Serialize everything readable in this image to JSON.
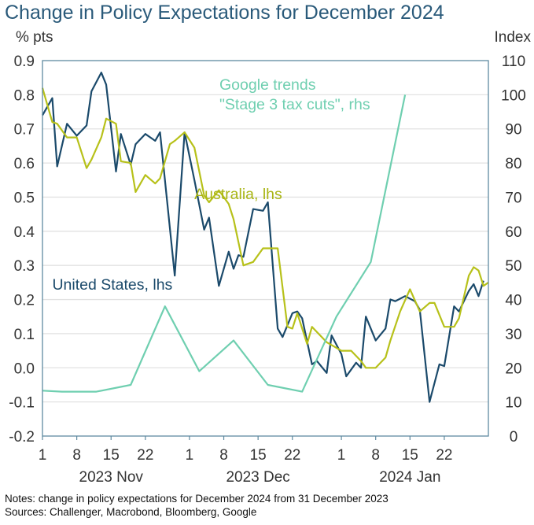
{
  "header": {
    "title": "Change in Policy Expectations for December 2024",
    "left_unit": "% pts",
    "right_unit": "Index"
  },
  "footer": {
    "notes": "Notes: change in policy expectations for December 2024 from 31 December 2023",
    "sources": "Sources: Challenger, Macrobond, Bloomberg, Google"
  },
  "chart_data": {
    "type": "line",
    "title": "Change in Policy Expectations for December 2024",
    "xlabel": "",
    "ylabel": "% pts",
    "ylabel_right": "Index",
    "ylim": [
      -0.2,
      0.9
    ],
    "ylim_right": [
      0,
      110
    ],
    "yticks": [
      "-0.2",
      "-0.1",
      "0.0",
      "0.1",
      "0.2",
      "0.3",
      "0.4",
      "0.5",
      "0.6",
      "0.7",
      "0.8",
      "0.9"
    ],
    "yticks_right": [
      "0",
      "10",
      "20",
      "30",
      "40",
      "50",
      "60",
      "70",
      "80",
      "90",
      "100",
      "110"
    ],
    "xlim": [
      "2023-11-01",
      "2024-01-31"
    ],
    "xticks": [
      {
        "date": "2023-11-01",
        "label": "1"
      },
      {
        "date": "2023-11-08",
        "label": "8"
      },
      {
        "date": "2023-11-15",
        "label": "15"
      },
      {
        "date": "2023-11-22",
        "label": "22"
      },
      {
        "date": "2023-12-01",
        "label": "1"
      },
      {
        "date": "2023-12-08",
        "label": "8"
      },
      {
        "date": "2023-12-15",
        "label": "15"
      },
      {
        "date": "2023-12-22",
        "label": "22"
      },
      {
        "date": "2024-01-01",
        "label": "1"
      },
      {
        "date": "2024-01-08",
        "label": "8"
      },
      {
        "date": "2024-01-15",
        "label": "15"
      },
      {
        "date": "2024-01-22",
        "label": "22"
      }
    ],
    "month_labels": [
      {
        "date": "2023-11-15",
        "label": "2023 Nov"
      },
      {
        "date": "2023-12-15",
        "label": "2023 Dec"
      },
      {
        "date": "2024-01-15",
        "label": "2024 Jan"
      }
    ],
    "grid": true,
    "series": [
      {
        "name": "United States, lhs",
        "axis": "left",
        "color": "#1b4a6b",
        "label_date": "2023-11-03",
        "label_value": 0.245,
        "points": [
          [
            "2023-11-01",
            0.74
          ],
          [
            "2023-11-03",
            0.79
          ],
          [
            "2023-11-04",
            0.59
          ],
          [
            "2023-11-06",
            0.715
          ],
          [
            "2023-11-08",
            0.68
          ],
          [
            "2023-11-10",
            0.71
          ],
          [
            "2023-11-11",
            0.81
          ],
          [
            "2023-11-13",
            0.865
          ],
          [
            "2023-11-14",
            0.83
          ],
          [
            "2023-11-16",
            0.575
          ],
          [
            "2023-11-17",
            0.685
          ],
          [
            "2023-11-19",
            0.595
          ],
          [
            "2023-11-20",
            0.655
          ],
          [
            "2023-11-22",
            0.685
          ],
          [
            "2023-11-24",
            0.665
          ],
          [
            "2023-11-25",
            0.69
          ],
          [
            "2023-11-28",
            0.27
          ],
          [
            "2023-11-30",
            0.69
          ],
          [
            "2023-12-02",
            0.55
          ],
          [
            "2023-12-04",
            0.405
          ],
          [
            "2023-12-05",
            0.44
          ],
          [
            "2023-12-07",
            0.24
          ],
          [
            "2023-12-09",
            0.34
          ],
          [
            "2023-12-10",
            0.29
          ],
          [
            "2023-12-11",
            0.33
          ],
          [
            "2023-12-12",
            0.325
          ],
          [
            "2023-12-14",
            0.465
          ],
          [
            "2023-12-16",
            0.46
          ],
          [
            "2023-12-17",
            0.485
          ],
          [
            "2023-12-19",
            0.115
          ],
          [
            "2023-12-20",
            0.09
          ],
          [
            "2023-12-22",
            0.16
          ],
          [
            "2023-12-23",
            0.165
          ],
          [
            "2023-12-24",
            0.145
          ],
          [
            "2023-12-26",
            0.01
          ],
          [
            "2023-12-27",
            0.02
          ],
          [
            "2023-12-29",
            -0.015
          ],
          [
            "2023-12-30",
            0.095
          ],
          [
            "2024-01-01",
            0.04
          ],
          [
            "2024-01-02",
            -0.025
          ],
          [
            "2024-01-04",
            0.015
          ],
          [
            "2024-01-05",
            0.0
          ],
          [
            "2024-01-06",
            0.15
          ],
          [
            "2024-01-08",
            0.08
          ],
          [
            "2024-01-10",
            0.115
          ],
          [
            "2024-01-11",
            0.2
          ],
          [
            "2024-01-12",
            0.195
          ],
          [
            "2024-01-14",
            0.21
          ],
          [
            "2024-01-16",
            0.195
          ],
          [
            "2024-01-17",
            0.17
          ],
          [
            "2024-01-19",
            -0.1
          ],
          [
            "2024-01-21",
            0.01
          ],
          [
            "2024-01-22",
            0.005
          ],
          [
            "2024-01-24",
            0.18
          ],
          [
            "2024-01-25",
            0.165
          ],
          [
            "2024-01-27",
            0.225
          ],
          [
            "2024-01-28",
            0.245
          ],
          [
            "2024-01-29",
            0.21
          ],
          [
            "2024-01-30",
            0.255
          ]
        ]
      },
      {
        "name": "Australia, lhs",
        "axis": "left",
        "color": "#b7c11a",
        "label_date": "2023-12-02",
        "label_value": 0.51,
        "points": [
          [
            "2023-11-01",
            0.82
          ],
          [
            "2023-11-03",
            0.72
          ],
          [
            "2023-11-04",
            0.715
          ],
          [
            "2023-11-06",
            0.675
          ],
          [
            "2023-11-08",
            0.675
          ],
          [
            "2023-11-10",
            0.585
          ],
          [
            "2023-11-11",
            0.61
          ],
          [
            "2023-11-13",
            0.675
          ],
          [
            "2023-11-14",
            0.73
          ],
          [
            "2023-11-16",
            0.715
          ],
          [
            "2023-11-17",
            0.605
          ],
          [
            "2023-11-19",
            0.6
          ],
          [
            "2023-11-20",
            0.515
          ],
          [
            "2023-11-22",
            0.565
          ],
          [
            "2023-11-24",
            0.54
          ],
          [
            "2023-11-25",
            0.555
          ],
          [
            "2023-11-27",
            0.655
          ],
          [
            "2023-11-28",
            0.665
          ],
          [
            "2023-11-30",
            0.69
          ],
          [
            "2023-12-02",
            0.645
          ],
          [
            "2023-12-04",
            0.505
          ],
          [
            "2023-12-05",
            0.485
          ],
          [
            "2023-12-07",
            0.52
          ],
          [
            "2023-12-09",
            0.48
          ],
          [
            "2023-12-10",
            0.435
          ],
          [
            "2023-12-12",
            0.3
          ],
          [
            "2023-12-14",
            0.31
          ],
          [
            "2023-12-16",
            0.35
          ],
          [
            "2023-12-18",
            0.35
          ],
          [
            "2023-12-19",
            0.35
          ],
          [
            "2023-12-21",
            0.12
          ],
          [
            "2023-12-22",
            0.115
          ],
          [
            "2023-12-23",
            0.16
          ],
          [
            "2023-12-25",
            0.07
          ],
          [
            "2023-12-26",
            0.12
          ],
          [
            "2023-12-27",
            0.105
          ],
          [
            "2023-12-29",
            0.075
          ],
          [
            "2024-01-01",
            0.05
          ],
          [
            "2024-01-03",
            0.05
          ],
          [
            "2024-01-05",
            0.02
          ],
          [
            "2024-01-06",
            0.0
          ],
          [
            "2024-01-08",
            0.0
          ],
          [
            "2024-01-10",
            0.03
          ],
          [
            "2024-01-11",
            0.08
          ],
          [
            "2024-01-13",
            0.165
          ],
          [
            "2024-01-15",
            0.23
          ],
          [
            "2024-01-17",
            0.165
          ],
          [
            "2024-01-19",
            0.19
          ],
          [
            "2024-01-20",
            0.19
          ],
          [
            "2024-01-22",
            0.12
          ],
          [
            "2024-01-24",
            0.12
          ],
          [
            "2024-01-25",
            0.145
          ],
          [
            "2024-01-27",
            0.27
          ],
          [
            "2024-01-28",
            0.295
          ],
          [
            "2024-01-29",
            0.285
          ],
          [
            "2024-01-30",
            0.24
          ],
          [
            "2024-01-31",
            0.25
          ]
        ]
      },
      {
        "name": "Google trends \"Stage 3 tax cuts\", rhs",
        "axis": "right",
        "color": "#6fcfb0",
        "label_lines": [
          "Google trends",
          "\"Stage 3 tax cuts\", rhs"
        ],
        "points": [
          [
            "2023-11-01",
            13.3
          ],
          [
            "2023-11-05",
            13.0
          ],
          [
            "2023-11-12",
            13.0
          ],
          [
            "2023-11-19",
            15.0
          ],
          [
            "2023-11-26",
            38.0
          ],
          [
            "2023-12-03",
            19.0
          ],
          [
            "2023-12-10",
            28.0
          ],
          [
            "2023-12-17",
            15.0
          ],
          [
            "2023-12-24",
            13.0
          ],
          [
            "2023-12-31",
            35.0
          ],
          [
            "2024-01-07",
            51.0
          ],
          [
            "2024-01-14",
            100.0
          ]
        ]
      }
    ]
  }
}
